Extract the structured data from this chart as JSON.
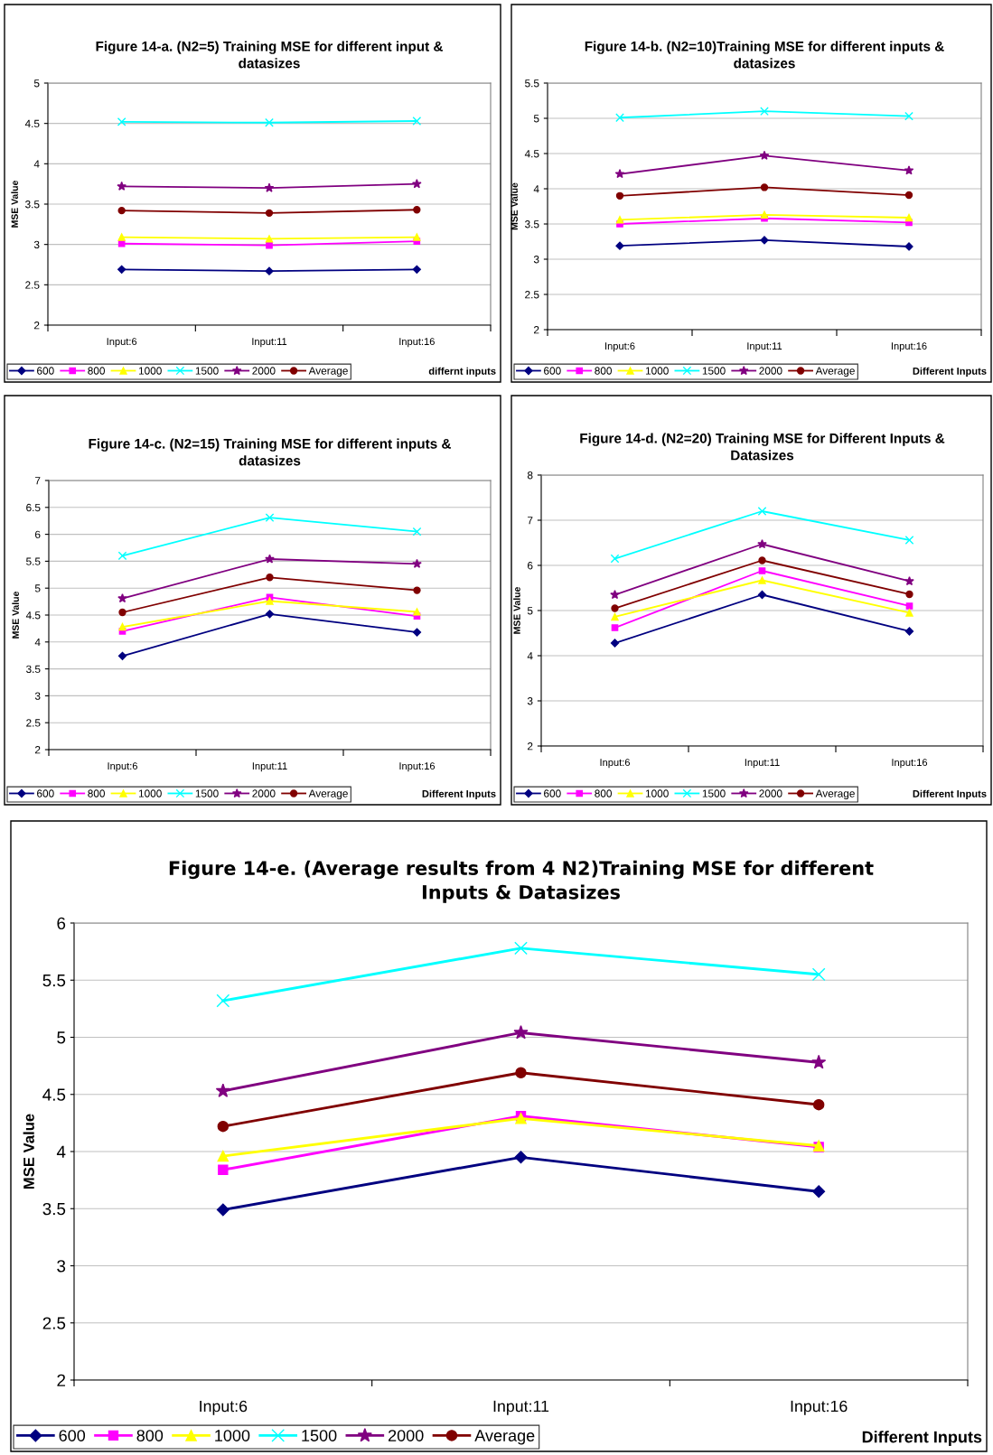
{
  "chart_data": [
    {
      "type": "line",
      "title": "Figure 14-a. (N2=5) Training MSE for different input & datasizes",
      "xlabel": "differnt inputs",
      "ylabel": "MSE Value",
      "categories": [
        "Input:6",
        "Input:11",
        "Input:16"
      ],
      "ylim": [
        2,
        5
      ],
      "yticks": [
        2,
        2.5,
        3,
        3.5,
        4,
        4.5,
        5
      ],
      "grid": "y",
      "legend": "bottom",
      "series": [
        {
          "name": "600",
          "color": "#000080",
          "marker": "diamond",
          "values": [
            2.69,
            2.67,
            2.69
          ]
        },
        {
          "name": "800",
          "color": "#ff00ff",
          "marker": "square",
          "values": [
            3.01,
            2.99,
            3.04
          ]
        },
        {
          "name": "1000",
          "color": "#ffff00",
          "marker": "triangle",
          "values": [
            3.09,
            3.07,
            3.09
          ]
        },
        {
          "name": "1500",
          "color": "#00ffff",
          "marker": "cross",
          "values": [
            4.52,
            4.51,
            4.53
          ]
        },
        {
          "name": "2000",
          "color": "#800080",
          "marker": "star",
          "values": [
            3.72,
            3.7,
            3.75
          ]
        },
        {
          "name": "Average",
          "color": "#800000",
          "marker": "circle",
          "values": [
            3.42,
            3.39,
            3.43
          ]
        }
      ]
    },
    {
      "type": "line",
      "title": "Figure 14-b. (N2=10)Training MSE for different inputs & datasizes",
      "xlabel": "Different Inputs",
      "ylabel": "MSE Value",
      "categories": [
        "Input:6",
        "Input:11",
        "Input:16"
      ],
      "ylim": [
        2,
        5.5
      ],
      "yticks": [
        2,
        2.5,
        3,
        3.5,
        4,
        4.5,
        5,
        5.5
      ],
      "grid": "y",
      "legend": "bottom",
      "series": [
        {
          "name": "600",
          "color": "#000080",
          "marker": "diamond",
          "values": [
            3.19,
            3.27,
            3.18
          ]
        },
        {
          "name": "800",
          "color": "#ff00ff",
          "marker": "square",
          "values": [
            3.5,
            3.58,
            3.52
          ]
        },
        {
          "name": "1000",
          "color": "#ffff00",
          "marker": "triangle",
          "values": [
            3.56,
            3.63,
            3.59
          ]
        },
        {
          "name": "1500",
          "color": "#00ffff",
          "marker": "cross",
          "values": [
            5.01,
            5.1,
            5.03
          ]
        },
        {
          "name": "2000",
          "color": "#800080",
          "marker": "star",
          "values": [
            4.21,
            4.47,
            4.26
          ]
        },
        {
          "name": "Average",
          "color": "#800000",
          "marker": "circle",
          "values": [
            3.9,
            4.02,
            3.91
          ]
        }
      ]
    },
    {
      "type": "line",
      "title": "Figure 14-c. (N2=15) Training MSE for different inputs & datasizes",
      "xlabel": "Different Inputs",
      "ylabel": "MSE Value",
      "categories": [
        "Input:6",
        "Input:11",
        "Input:16"
      ],
      "ylim": [
        2,
        7
      ],
      "yticks": [
        2,
        2.5,
        3,
        3.5,
        4,
        4.5,
        5,
        5.5,
        6,
        6.5,
        7
      ],
      "grid": "y",
      "legend": "bottom",
      "series": [
        {
          "name": "600",
          "color": "#000080",
          "marker": "diamond",
          "values": [
            3.74,
            4.52,
            4.18
          ]
        },
        {
          "name": "800",
          "color": "#ff00ff",
          "marker": "square",
          "values": [
            4.2,
            4.83,
            4.48
          ]
        },
        {
          "name": "1000",
          "color": "#ffff00",
          "marker": "triangle",
          "values": [
            4.28,
            4.76,
            4.56
          ]
        },
        {
          "name": "1500",
          "color": "#00ffff",
          "marker": "cross",
          "values": [
            5.6,
            6.31,
            6.05
          ]
        },
        {
          "name": "2000",
          "color": "#800080",
          "marker": "star",
          "values": [
            4.81,
            5.54,
            5.45
          ]
        },
        {
          "name": "Average",
          "color": "#800000",
          "marker": "circle",
          "values": [
            4.55,
            5.2,
            4.96
          ]
        }
      ]
    },
    {
      "type": "line",
      "title": "Figure 14-d. (N2=20) Training MSE for Different Inputs & Datasizes",
      "xlabel": "Different Inputs",
      "ylabel": "MSE Value",
      "categories": [
        "Input:6",
        "Input:11",
        "Input:16"
      ],
      "ylim": [
        2,
        8
      ],
      "yticks": [
        2,
        3,
        4,
        5,
        6,
        7,
        8
      ],
      "grid": "y",
      "legend": "bottom",
      "series": [
        {
          "name": "600",
          "color": "#000080",
          "marker": "diamond",
          "values": [
            4.28,
            5.35,
            4.54
          ]
        },
        {
          "name": "800",
          "color": "#ff00ff",
          "marker": "square",
          "values": [
            4.62,
            5.88,
            5.1
          ]
        },
        {
          "name": "1000",
          "color": "#ffff00",
          "marker": "triangle",
          "values": [
            4.86,
            5.67,
            4.95
          ]
        },
        {
          "name": "1500",
          "color": "#00ffff",
          "marker": "cross",
          "values": [
            6.15,
            7.2,
            6.56
          ]
        },
        {
          "name": "2000",
          "color": "#800080",
          "marker": "star",
          "values": [
            5.35,
            6.47,
            5.65
          ]
        },
        {
          "name": "Average",
          "color": "#800000",
          "marker": "circle",
          "values": [
            5.05,
            6.11,
            5.36
          ]
        }
      ]
    },
    {
      "type": "line",
      "title": "Figure 14-e. (Average results from 4 N2)Training MSE for different Inputs & Datasizes",
      "xlabel": "Different Inputs",
      "ylabel": "MSE Value",
      "categories": [
        "Input:6",
        "Input:11",
        "Input:16"
      ],
      "ylim": [
        2,
        6
      ],
      "yticks": [
        2,
        2.5,
        3,
        3.5,
        4,
        4.5,
        5,
        5.5,
        6
      ],
      "grid": "y",
      "legend": "bottom",
      "series": [
        {
          "name": "600",
          "color": "#000080",
          "marker": "diamond",
          "values": [
            3.49,
            3.95,
            3.65
          ]
        },
        {
          "name": "800",
          "color": "#ff00ff",
          "marker": "square",
          "values": [
            3.84,
            4.31,
            4.04
          ]
        },
        {
          "name": "1000",
          "color": "#ffff00",
          "marker": "triangle",
          "values": [
            3.96,
            4.29,
            4.05
          ]
        },
        {
          "name": "1500",
          "color": "#00ffff",
          "marker": "cross",
          "values": [
            5.32,
            5.78,
            5.55
          ]
        },
        {
          "name": "2000",
          "color": "#800080",
          "marker": "star",
          "values": [
            4.53,
            5.04,
            4.78
          ]
        },
        {
          "name": "Average",
          "color": "#800000",
          "marker": "circle",
          "values": [
            4.22,
            4.69,
            4.41
          ]
        }
      ]
    }
  ]
}
